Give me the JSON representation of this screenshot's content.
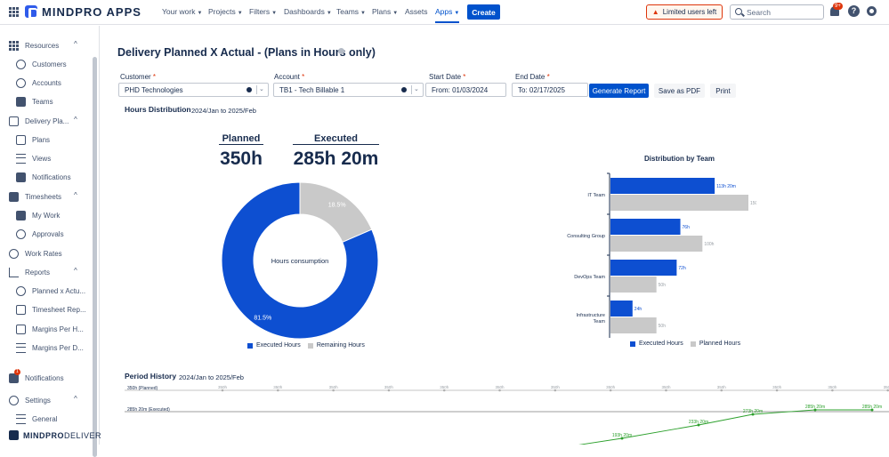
{
  "topbar": {
    "brand": "MINDPRO APPS",
    "nav": [
      {
        "label": "Your work",
        "caret": true
      },
      {
        "label": "Projects",
        "caret": true
      },
      {
        "label": "Filters",
        "caret": true
      },
      {
        "label": "Dashboards",
        "caret": true
      },
      {
        "label": "Teams",
        "caret": true
      },
      {
        "label": "Plans",
        "caret": true
      },
      {
        "label": "Assets",
        "caret": false
      },
      {
        "label": "Apps",
        "caret": true
      }
    ],
    "create_label": "Create",
    "limited_label": "Limited users left",
    "search_placeholder": "Search",
    "notif_badge": "9+",
    "help_label": "?"
  },
  "sidebar": {
    "items": [
      {
        "label": "Resources",
        "level": 0,
        "icon": "grid-icon",
        "chevron": "^"
      },
      {
        "label": "Customers",
        "level": 1,
        "icon": "user-circle-icon"
      },
      {
        "label": "Accounts",
        "level": 1,
        "icon": "account-icon"
      },
      {
        "label": "Teams",
        "level": 1,
        "icon": "teams-icon"
      },
      {
        "label": "Delivery Pla...",
        "level": 0,
        "icon": "delivery-plan-icon",
        "chevron": "^"
      },
      {
        "label": "Plans",
        "level": 1,
        "icon": "plans-icon"
      },
      {
        "label": "Views",
        "level": 1,
        "icon": "views-icon"
      },
      {
        "label": "Notifications",
        "level": 1,
        "icon": "megaphone-icon"
      },
      {
        "label": "Timesheets",
        "level": 0,
        "icon": "calendar-icon",
        "chevron": "^"
      },
      {
        "label": "My Work",
        "level": 1,
        "icon": "my-work-icon"
      },
      {
        "label": "Approvals",
        "level": 1,
        "icon": "check-circle-icon"
      },
      {
        "label": "Work Rates",
        "level": 0,
        "icon": "clock-icon"
      },
      {
        "label": "Reports",
        "level": 0,
        "icon": "bar-chart-icon",
        "chevron": "^"
      },
      {
        "label": "Planned x Actu...",
        "level": 1,
        "icon": "refresh-icon"
      },
      {
        "label": "Timesheet Rep...",
        "level": 1,
        "icon": "timesheet-report-icon"
      },
      {
        "label": "Margins Per H...",
        "level": 1,
        "icon": "margins-hour-icon"
      },
      {
        "label": "Margins Per D...",
        "level": 1,
        "icon": "list-icon"
      },
      {
        "label": "Notifications",
        "level": 0,
        "icon": "bell-notif-icon",
        "badge": "1"
      },
      {
        "label": "Settings",
        "level": 0,
        "icon": "gear-icon",
        "chevron": "^"
      },
      {
        "label": "General",
        "level": 1,
        "icon": "sliders-icon"
      }
    ],
    "brand_bold": "MINDPRO",
    "brand_thin": "DELIVER"
  },
  "page": {
    "title": "Delivery Planned X Actual - (Plans in Hours only)",
    "filters": {
      "customer_label": "Customer",
      "customer_value": "PHD Technologies",
      "account_label": "Account",
      "account_value": "TB1 - Tech Billable 1",
      "start_label": "Start Date",
      "start_value": "From: 01/03/2024",
      "end_label": "End Date",
      "end_value": "To: 02/17/2025",
      "required_mark": "*"
    },
    "buttons": {
      "generate": "Generate Report",
      "pdf": "Save as PDF",
      "print": "Print"
    },
    "hours_distribution": {
      "title": "Hours Distribution",
      "range": "2024/Jan to 2025/Feb",
      "planned_label": "Planned",
      "planned_value": "350h",
      "executed_label": "Executed",
      "executed_value": "285h 20m"
    },
    "period_history": {
      "title": "Period History",
      "range": "2024/Jan to 2025/Feb"
    }
  },
  "colors": {
    "executed": "#0d4fd1",
    "remaining": "#c9c9c9",
    "line": "#2ca02c",
    "accent": "#0052cc"
  },
  "chart_data": [
    {
      "type": "pie",
      "title": "Hours consumption",
      "labels": [
        "Executed Hours",
        "Remaining Hours"
      ],
      "values": [
        81.5,
        18.5
      ],
      "value_labels": [
        "81.5%",
        "18.5%"
      ],
      "donut": true
    },
    {
      "type": "bar",
      "orientation": "horizontal",
      "title": "Distribution by Team",
      "categories": [
        "IT Team",
        "Consulting Group",
        "DevOps Team",
        "Infrastructure Team"
      ],
      "series": [
        {
          "name": "Executed Hours",
          "values": [
            113.33,
            76,
            72,
            24
          ],
          "labels": [
            "113h 20m",
            "76h",
            "72h",
            "24h"
          ]
        },
        {
          "name": "Planned Hours",
          "values": [
            150,
            100,
            50,
            50
          ],
          "labels": [
            "150h",
            "100h",
            "50h",
            "50h"
          ]
        }
      ]
    },
    {
      "type": "line",
      "title": "Period History",
      "series": [
        {
          "name": "350h (Planned)",
          "values": [
            350,
            350,
            350,
            350,
            350,
            350,
            350,
            350,
            350,
            350,
            350,
            350,
            350,
            350
          ],
          "labels": [
            "350h",
            "350h",
            "350h",
            "350h",
            "350h",
            "350h",
            "350h",
            "350h",
            "350h",
            "350h",
            "350h",
            "350h",
            "350h",
            "350h"
          ]
        },
        {
          "name": "285h 20m (Executed)",
          "values": [
            null,
            null,
            null,
            null,
            null,
            null,
            null,
            null,
            null,
            193.33,
            233.33,
            273.33,
            285.33,
            285.33
          ],
          "labels": [
            "",
            "",
            "",
            "",
            "",
            "",
            "",
            "",
            "",
            "193h 20m",
            "233h 20m",
            "273h 20m",
            "285h 20m",
            "285h 20m"
          ]
        }
      ]
    }
  ]
}
